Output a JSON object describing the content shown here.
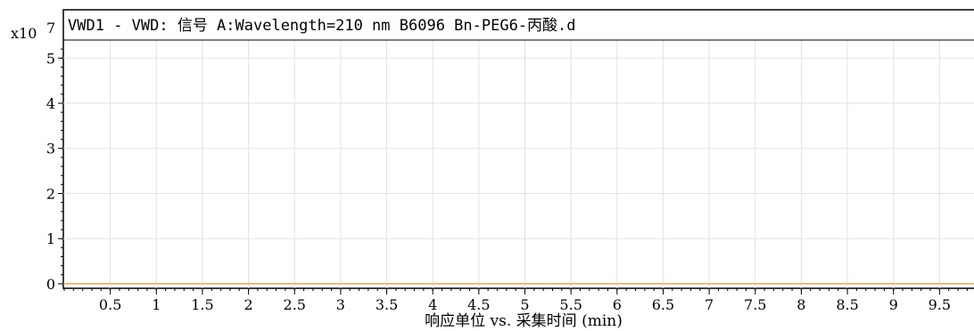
{
  "chart_data": {
    "type": "line",
    "title": "VWD1 - VWD: 信号 A:Wavelength=210 nm B6096 Bn-PEG6-丙酸.d",
    "xlabel": "响应单位 vs. 采集时间 (min)",
    "y_multiplier": "x10",
    "y_exponent": "7",
    "xlim": [
      0,
      10
    ],
    "ylim": [
      -0.1,
      5.4
    ],
    "x_ticks": [
      0.5,
      1,
      1.5,
      2,
      2.5,
      3,
      3.5,
      4,
      4.5,
      5,
      5.5,
      6,
      6.5,
      7,
      7.5,
      8,
      8.5,
      9,
      9.5
    ],
    "x_tick_labels": [
      "0.5",
      "1",
      "1.5",
      "2",
      "2.5",
      "3",
      "3.5",
      "4",
      "4.5",
      "5",
      "5.5",
      "6",
      "6.5",
      "7",
      "7.5",
      "8",
      "8.5",
      "9",
      "9.5"
    ],
    "y_ticks": [
      0,
      1,
      2,
      3,
      4,
      5
    ],
    "y_tick_labels": [
      "0",
      "1",
      "2",
      "3",
      "4",
      "5"
    ],
    "grid": true,
    "series": [
      {
        "color": "#f5a54a",
        "x": [
          0,
          10
        ],
        "y": [
          0,
          0
        ]
      }
    ]
  }
}
